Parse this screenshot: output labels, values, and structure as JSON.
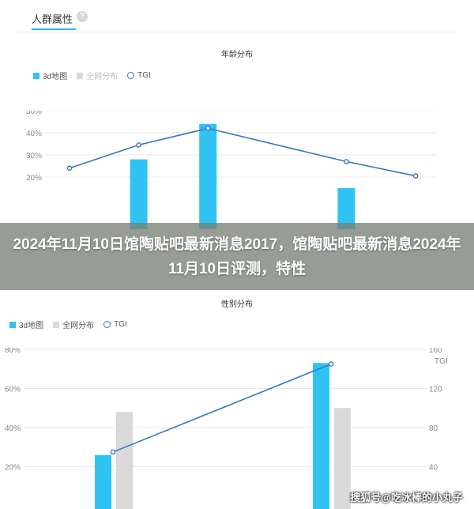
{
  "page": {
    "section_title": "人群属性",
    "help_icon": "question-circle-icon"
  },
  "colors": {
    "bar_3d": "#2fc3f4",
    "bar_all": "#d9d9d9",
    "tgi_line": "#3a74c4",
    "grid": "#e8e8e8"
  },
  "chart_data": [
    {
      "type": "bar",
      "title": "年龄分布",
      "legend": [
        "3d地图",
        "全网分布",
        "TGI"
      ],
      "legend_placement": "top-left",
      "y_ticks": [
        "50%",
        "40%",
        "30%",
        "20%"
      ],
      "ylim": [
        0,
        50
      ],
      "series": [
        {
          "name": "3d地图",
          "values": [
            null,
            28,
            44,
            null,
            15,
            null
          ]
        },
        {
          "name": "TGI",
          "values": [
            24,
            34.5,
            42,
            null,
            27,
            20.5
          ]
        }
      ],
      "grid": true
    },
    {
      "type": "bar",
      "title": "性别分布",
      "legend": [
        "3d地图",
        "全网分布",
        "TGI"
      ],
      "legend_placement": "top-left",
      "y_ticks": [
        "80%",
        "60%",
        "40%",
        "20%"
      ],
      "y2_label": "TGI",
      "y2_ticks": [
        "160",
        "120",
        "80",
        "40"
      ],
      "ylim": [
        0,
        80
      ],
      "y2lim": [
        0,
        160
      ],
      "series": [
        {
          "name": "3d地图",
          "values": [
            26,
            73
          ]
        },
        {
          "name": "全网分布",
          "values": [
            48,
            50
          ]
        },
        {
          "name": "TGI",
          "values": [
            55,
            145
          ]
        }
      ],
      "grid": true
    }
  ],
  "overlay": {
    "banner_text": "2024年11月10日馆陶贴吧最新消息2017，馆陶贴吧最新消息2024年11月10日评测，特性",
    "watermark": "搜狐号@吃冰棒的小丸子"
  }
}
